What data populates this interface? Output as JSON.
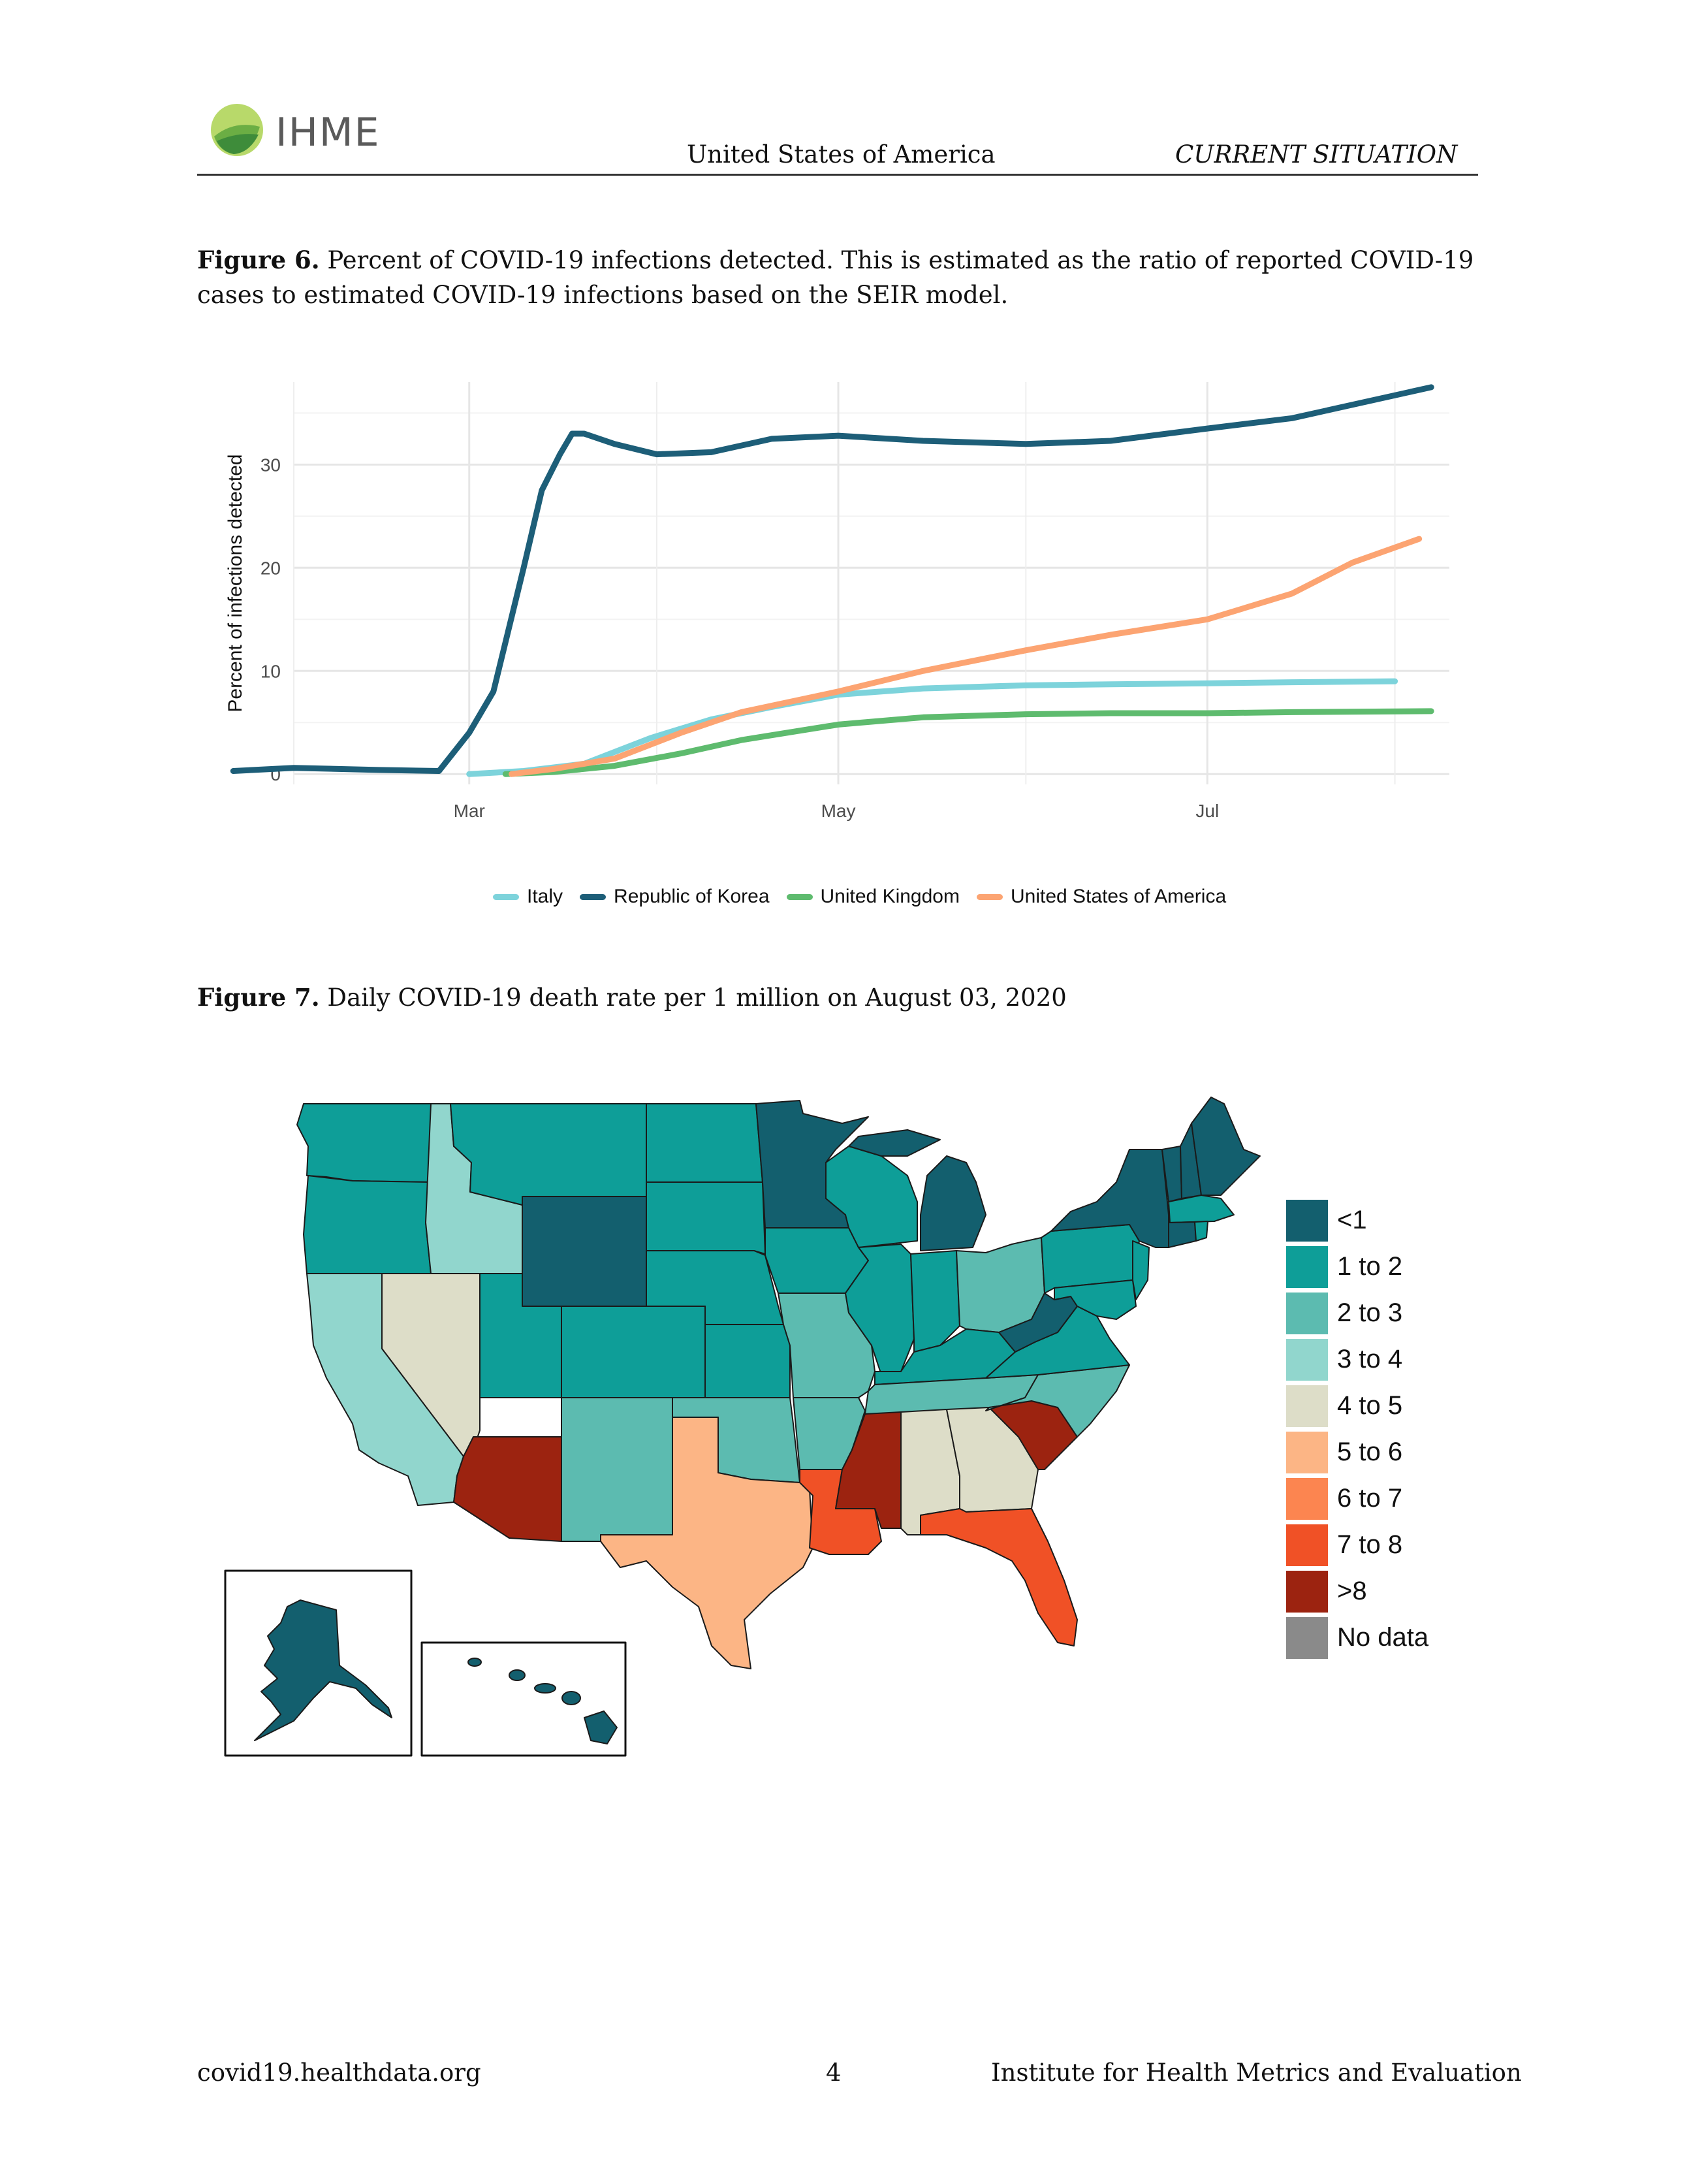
{
  "header": {
    "logo_text": "IHME",
    "center": "United States of America",
    "right": "CURRENT SITUATION"
  },
  "figure6": {
    "label": "Figure 6.",
    "caption": "Percent of COVID-19 infections detected. This is estimated as the ratio of reported COVID-19 cases to estimated COVID-19 infections based on the SEIR model."
  },
  "figure7": {
    "label": "Figure 7.",
    "caption": "Daily COVID-19 death rate per 1 million on August 03, 2020",
    "legend_title": "",
    "bins": [
      {
        "label": "<1",
        "color": "#135F6E"
      },
      {
        "label": "1 to 2",
        "color": "#0E9E98"
      },
      {
        "label": "2 to 3",
        "color": "#5CBBB0"
      },
      {
        "label": "3 to 4",
        "color": "#91D6CD"
      },
      {
        "label": "4 to 5",
        "color": "#DDDDC8"
      },
      {
        "label": "5 to 6",
        "color": "#FCB585"
      },
      {
        "label": "6 to 7",
        "color": "#FC8550"
      },
      {
        "label": "7 to 8",
        "color": "#F05126"
      },
      {
        "label": ">8",
        "color": "#9C2310"
      },
      {
        "label": "No data",
        "color": "#8A8A8A"
      }
    ]
  },
  "chart_data": {
    "type": "line",
    "title": "",
    "xlabel": "",
    "ylabel": "Percent of infections detected",
    "x_ticks": [
      "Mar",
      "May",
      "Jul"
    ],
    "y_ticks": [
      0,
      10,
      20,
      30
    ],
    "ylim": [
      -1,
      38
    ],
    "xlim": [
      "2020-02-01",
      "2020-08-10"
    ],
    "grid": true,
    "legend_position": "bottom",
    "series": [
      {
        "name": "Italy",
        "color": "#7DD3DB",
        "x": [
          "2020-03-01",
          "2020-03-10",
          "2020-03-20",
          "2020-03-31",
          "2020-04-10",
          "2020-04-20",
          "2020-05-01",
          "2020-05-15",
          "2020-06-01",
          "2020-06-15",
          "2020-07-01",
          "2020-07-15",
          "2020-08-01"
        ],
        "y": [
          0,
          0.3,
          1,
          3.5,
          5.3,
          6.5,
          7.7,
          8.3,
          8.6,
          8.7,
          8.8,
          8.9,
          9.0
        ]
      },
      {
        "name": "Republic of Korea",
        "color": "#1D5E78",
        "x": [
          "2020-01-22",
          "2020-02-01",
          "2020-02-15",
          "2020-02-25",
          "2020-03-01",
          "2020-03-05",
          "2020-03-10",
          "2020-03-13",
          "2020-03-16",
          "2020-03-18",
          "2020-03-20",
          "2020-03-25",
          "2020-04-01",
          "2020-04-10",
          "2020-04-20",
          "2020-05-01",
          "2020-05-15",
          "2020-06-01",
          "2020-06-15",
          "2020-07-01",
          "2020-07-15",
          "2020-08-07"
        ],
        "y": [
          0.3,
          0.6,
          0.4,
          0.3,
          4,
          8,
          20,
          27.5,
          31,
          33,
          33,
          32,
          31,
          31.2,
          32.5,
          32.8,
          32.3,
          32.0,
          32.3,
          33.5,
          34.5,
          37.5
        ]
      },
      {
        "name": "United Kingdom",
        "color": "#5EBB6E",
        "x": [
          "2020-03-07",
          "2020-03-15",
          "2020-03-25",
          "2020-04-05",
          "2020-04-15",
          "2020-05-01",
          "2020-05-15",
          "2020-06-01",
          "2020-06-15",
          "2020-07-01",
          "2020-07-15",
          "2020-08-07"
        ],
        "y": [
          0,
          0.2,
          0.8,
          2,
          3.3,
          4.8,
          5.5,
          5.8,
          5.9,
          5.9,
          6.0,
          6.1
        ]
      },
      {
        "name": "United States of America",
        "color": "#FCA472",
        "x": [
          "2020-03-08",
          "2020-03-15",
          "2020-03-25",
          "2020-04-05",
          "2020-04-15",
          "2020-05-01",
          "2020-05-15",
          "2020-06-01",
          "2020-06-15",
          "2020-07-01",
          "2020-07-15",
          "2020-07-25",
          "2020-08-05"
        ],
        "y": [
          0,
          0.5,
          1.5,
          4,
          6,
          8,
          10,
          12,
          13.5,
          15,
          17.5,
          20.5,
          22.8
        ]
      }
    ]
  }
}
